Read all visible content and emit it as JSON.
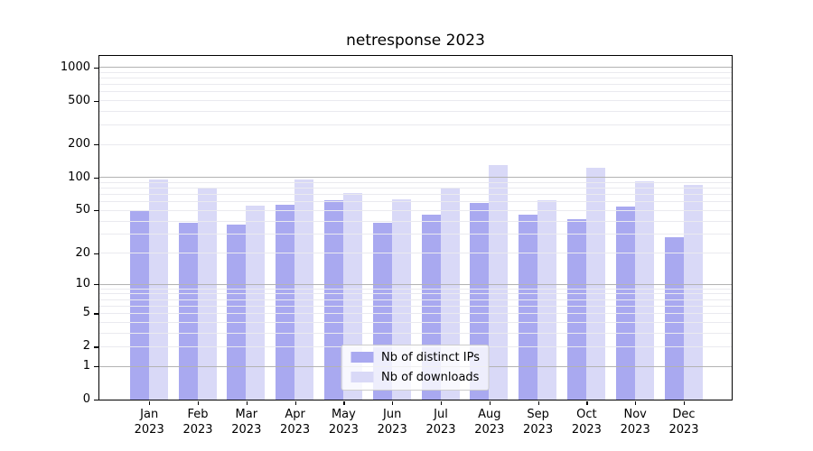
{
  "chart_data": {
    "type": "bar",
    "title": "netresponse 2023",
    "yscale": "log1p",
    "ylim": [
      0,
      1270
    ],
    "grid": true,
    "legend_position": "lower center",
    "yticks": [
      1000,
      500,
      200,
      100,
      50,
      20,
      10,
      5,
      2,
      1,
      0
    ],
    "categories": [
      {
        "month": "Jan",
        "year": "2023"
      },
      {
        "month": "Feb",
        "year": "2023"
      },
      {
        "month": "Mar",
        "year": "2023"
      },
      {
        "month": "Apr",
        "year": "2023"
      },
      {
        "month": "May",
        "year": "2023"
      },
      {
        "month": "Jun",
        "year": "2023"
      },
      {
        "month": "Jul",
        "year": "2023"
      },
      {
        "month": "Aug",
        "year": "2023"
      },
      {
        "month": "Sep",
        "year": "2023"
      },
      {
        "month": "Oct",
        "year": "2023"
      },
      {
        "month": "Nov",
        "year": "2023"
      },
      {
        "month": "Dec",
        "year": "2023"
      }
    ],
    "series": [
      {
        "name": "Nb of distinct IPs",
        "color": "#a9a9f0",
        "values": [
          49,
          38,
          37,
          56,
          61,
          38,
          45,
          58,
          45,
          41,
          54,
          28
        ]
      },
      {
        "name": "Nb of downloads",
        "color": "#d9d9f7",
        "values": [
          95,
          79,
          55,
          96,
          72,
          63,
          80,
          128,
          62,
          122,
          92,
          85
        ]
      }
    ]
  },
  "colors": {
    "major_grid": "#b3b3b3",
    "minor_grid": "#eaeaef",
    "spine": "#000000",
    "text": "#000000"
  }
}
